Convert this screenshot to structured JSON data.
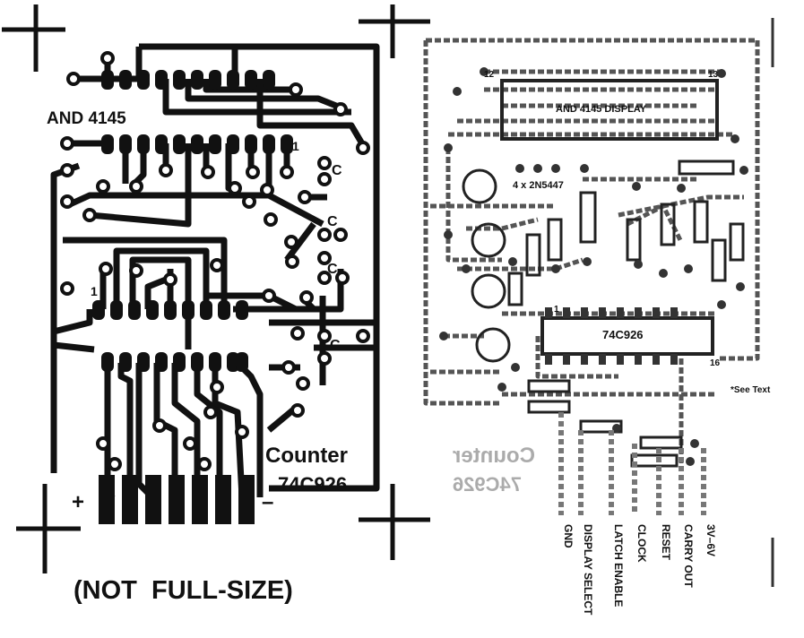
{
  "left_board": {
    "chip_top": "AND 4145",
    "pin1_top": "1",
    "pin1_bottom": "1",
    "cap_labels": [
      "C",
      "C",
      "C",
      "C"
    ],
    "title_line1": "Counter",
    "title_line2": "74C926",
    "plus": "+",
    "minus": "–",
    "footnote": "(NOT  FULL-SIZE)"
  },
  "right_board": {
    "display_label": "AND 4145  DISPLAY",
    "transistor_label": "4 x 2N5447",
    "ic_label": "74C926",
    "pin_13": "13",
    "pin_12": "12",
    "pin_16": "16",
    "pin_1": "1",
    "see_text": "*See Text",
    "mirror_line1": "Counter",
    "mirror_line2": "74C926",
    "connections": [
      "GND",
      "DISPLAY SELECT",
      "LATCH ENABLE",
      "CLOCK",
      "RESET",
      "CARRY OUT",
      "3V–6V"
    ]
  }
}
